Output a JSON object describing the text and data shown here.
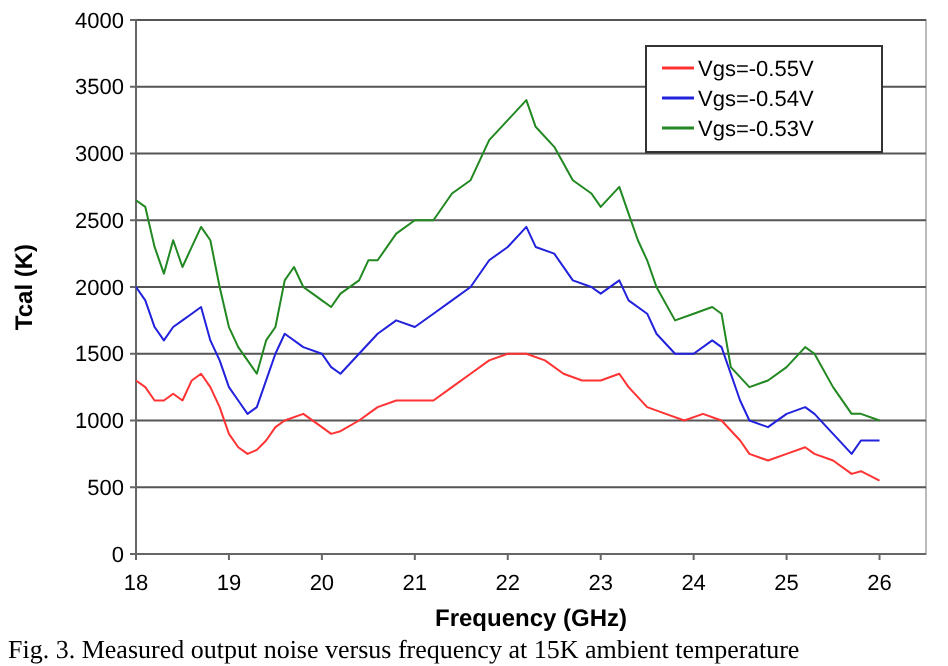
{
  "chart_data": {
    "type": "line",
    "xlabel": "Frequency (GHz)",
    "ylabel": "Tcal (K)",
    "xlim": [
      18,
      26.5
    ],
    "xticks": [
      18,
      19,
      20,
      21,
      22,
      23,
      24,
      25,
      26
    ],
    "ylim": [
      0,
      4000
    ],
    "yticks": [
      0,
      500,
      1000,
      1500,
      2000,
      2500,
      3000,
      3500,
      4000
    ],
    "grid": "y",
    "legend": "top right",
    "marker": "none",
    "line_style": "solid",
    "annotations": [
      "Fig. 3.  Measured output noise versus frequency at 15K ambient temperature"
    ],
    "series": [
      {
        "name": "Vgs=-0.55V",
        "color": "#ff3333",
        "x": [
          18,
          18.1,
          18.2,
          18.3,
          18.4,
          18.5,
          18.6,
          18.7,
          18.8,
          18.9,
          19,
          19.1,
          19.2,
          19.3,
          19.4,
          19.5,
          19.6,
          19.8,
          20,
          20.1,
          20.2,
          20.4,
          20.6,
          20.8,
          21,
          21.2,
          21.4,
          21.6,
          21.8,
          22,
          22.2,
          22.4,
          22.6,
          22.8,
          23,
          23.2,
          23.3,
          23.5,
          23.7,
          23.9,
          24.1,
          24.3,
          24.5,
          24.6,
          24.8,
          25,
          25.2,
          25.3,
          25.5,
          25.7,
          25.8,
          26
        ],
        "values": [
          1300,
          1250,
          1150,
          1150,
          1200,
          1150,
          1300,
          1350,
          1250,
          1100,
          900,
          800,
          750,
          780,
          850,
          950,
          1000,
          1050,
          950,
          900,
          920,
          1000,
          1100,
          1150,
          1150,
          1150,
          1250,
          1350,
          1450,
          1500,
          1500,
          1450,
          1350,
          1300,
          1300,
          1350,
          1250,
          1100,
          1050,
          1000,
          1050,
          1000,
          850,
          750,
          700,
          750,
          800,
          750,
          700,
          600,
          620,
          550
        ]
      },
      {
        "name": "Vgs=-0.54V",
        "color": "#2222dd",
        "x": [
          18,
          18.1,
          18.2,
          18.3,
          18.4,
          18.5,
          18.6,
          18.7,
          18.8,
          18.9,
          19,
          19.1,
          19.2,
          19.3,
          19.4,
          19.5,
          19.6,
          19.8,
          20,
          20.1,
          20.2,
          20.4,
          20.6,
          20.8,
          21,
          21.2,
          21.4,
          21.6,
          21.8,
          22,
          22.2,
          22.3,
          22.5,
          22.7,
          22.9,
          23,
          23.2,
          23.3,
          23.5,
          23.6,
          23.8,
          24,
          24.2,
          24.3,
          24.5,
          24.6,
          24.8,
          25,
          25.2,
          25.3,
          25.5,
          25.7,
          25.8,
          26
        ],
        "values": [
          2000,
          1900,
          1700,
          1600,
          1700,
          1750,
          1800,
          1850,
          1600,
          1450,
          1250,
          1150,
          1050,
          1100,
          1300,
          1500,
          1650,
          1550,
          1500,
          1400,
          1350,
          1500,
          1650,
          1750,
          1700,
          1800,
          1900,
          2000,
          2200,
          2300,
          2450,
          2300,
          2250,
          2050,
          2000,
          1950,
          2050,
          1900,
          1800,
          1650,
          1500,
          1500,
          1600,
          1550,
          1150,
          1000,
          950,
          1050,
          1100,
          1050,
          900,
          750,
          850,
          850
        ]
      },
      {
        "name": "Vgs=-0.53V",
        "color": "#228822",
        "x": [
          18,
          18.1,
          18.2,
          18.3,
          18.4,
          18.5,
          18.6,
          18.7,
          18.8,
          18.9,
          19,
          19.1,
          19.2,
          19.3,
          19.4,
          19.5,
          19.6,
          19.7,
          19.8,
          19.9,
          20,
          20.1,
          20.2,
          20.4,
          20.5,
          20.6,
          20.8,
          21,
          21.2,
          21.4,
          21.6,
          21.8,
          22,
          22.2,
          22.3,
          22.5,
          22.7,
          22.9,
          23,
          23.2,
          23.3,
          23.4,
          23.5,
          23.6,
          23.8,
          24,
          24.2,
          24.3,
          24.4,
          24.6,
          24.8,
          25,
          25.2,
          25.3,
          25.5,
          25.7,
          25.8,
          26
        ],
        "values": [
          2650,
          2600,
          2300,
          2100,
          2350,
          2150,
          2300,
          2450,
          2350,
          2000,
          1700,
          1550,
          1450,
          1350,
          1600,
          1700,
          2050,
          2150,
          2000,
          1950,
          1900,
          1850,
          1950,
          2050,
          2200,
          2200,
          2400,
          2500,
          2500,
          2700,
          2800,
          3100,
          3250,
          3400,
          3200,
          3050,
          2800,
          2700,
          2600,
          2750,
          2550,
          2350,
          2200,
          2000,
          1750,
          1800,
          1850,
          1800,
          1400,
          1250,
          1300,
          1400,
          1550,
          1500,
          1250,
          1050,
          1050,
          1000
        ]
      }
    ]
  }
}
